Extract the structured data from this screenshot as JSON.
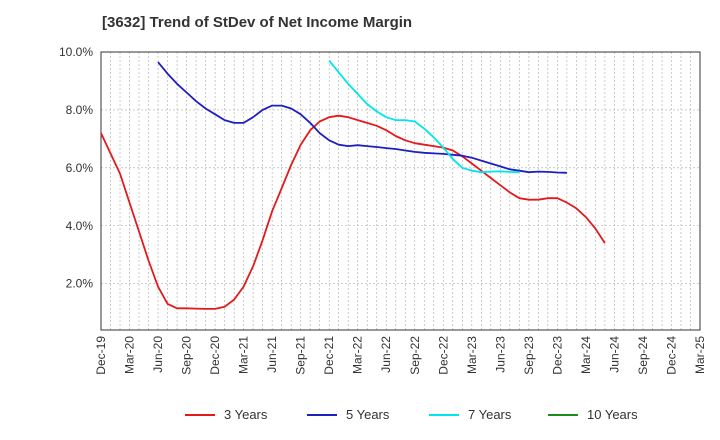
{
  "chart_data": {
    "type": "line",
    "title": "[3632]  Trend of StDev of Net Income Margin",
    "xlabel": "",
    "ylabel": "",
    "x_ticks": [
      "Dec-19",
      "Mar-20",
      "Jun-20",
      "Sep-20",
      "Dec-20",
      "Mar-21",
      "Jun-21",
      "Sep-21",
      "Dec-21",
      "Mar-22",
      "Jun-22",
      "Sep-22",
      "Dec-22",
      "Mar-23",
      "Jun-23",
      "Sep-23",
      "Dec-23",
      "Mar-24",
      "Jun-24",
      "Sep-24",
      "Dec-24",
      "Mar-25"
    ],
    "y_ticks": [
      "2.0%",
      "4.0%",
      "6.0%",
      "8.0%",
      "10.0%"
    ],
    "y_tick_values": [
      2.0,
      4.0,
      6.0,
      8.0,
      10.0
    ],
    "ylim": [
      0.4,
      10.0
    ],
    "grid": true,
    "legend_position": "bottom",
    "series": [
      {
        "name": "3 Years",
        "color": "#e31a1c",
        "points": [
          [
            "Dec-19",
            7.2
          ],
          [
            "Jan-20",
            6.5
          ],
          [
            "Feb-20",
            5.8
          ],
          [
            "Mar-20",
            4.8
          ],
          [
            "Apr-20",
            3.8
          ],
          [
            "May-20",
            2.8
          ],
          [
            "Jun-20",
            1.9
          ],
          [
            "Jul-20",
            1.3
          ],
          [
            "Aug-20",
            1.15
          ],
          [
            "Sep-20",
            1.15
          ],
          [
            "Oct-20",
            1.14
          ],
          [
            "Nov-20",
            1.13
          ],
          [
            "Dec-20",
            1.13
          ],
          [
            "Jan-21",
            1.2
          ],
          [
            "Feb-21",
            1.45
          ],
          [
            "Mar-21",
            1.9
          ],
          [
            "Apr-21",
            2.6
          ],
          [
            "May-21",
            3.5
          ],
          [
            "Jun-21",
            4.5
          ],
          [
            "Jul-21",
            5.3
          ],
          [
            "Aug-21",
            6.1
          ],
          [
            "Sep-21",
            6.8
          ],
          [
            "Oct-21",
            7.3
          ],
          [
            "Nov-21",
            7.6
          ],
          [
            "Dec-21",
            7.75
          ],
          [
            "Jan-22",
            7.8
          ],
          [
            "Feb-22",
            7.75
          ],
          [
            "Mar-22",
            7.65
          ],
          [
            "Apr-22",
            7.55
          ],
          [
            "May-22",
            7.45
          ],
          [
            "Jun-22",
            7.3
          ],
          [
            "Jul-22",
            7.1
          ],
          [
            "Aug-22",
            6.95
          ],
          [
            "Sep-22",
            6.85
          ],
          [
            "Oct-22",
            6.8
          ],
          [
            "Nov-22",
            6.75
          ],
          [
            "Dec-22",
            6.7
          ],
          [
            "Jan-23",
            6.6
          ],
          [
            "Feb-23",
            6.4
          ],
          [
            "Mar-23",
            6.15
          ],
          [
            "Apr-23",
            5.9
          ],
          [
            "May-23",
            5.65
          ],
          [
            "Jun-23",
            5.4
          ],
          [
            "Jul-23",
            5.15
          ],
          [
            "Aug-23",
            4.95
          ],
          [
            "Sep-23",
            4.9
          ],
          [
            "Oct-23",
            4.9
          ],
          [
            "Nov-23",
            4.95
          ],
          [
            "Dec-23",
            4.95
          ],
          [
            "Jan-24",
            4.8
          ],
          [
            "Feb-24",
            4.6
          ],
          [
            "Mar-24",
            4.3
          ],
          [
            "Apr-24",
            3.9
          ],
          [
            "May-24",
            3.4
          ]
        ]
      },
      {
        "name": "5 Years",
        "color": "#1f1fbf",
        "points": [
          [
            "Jun-20",
            9.65
          ],
          [
            "Jul-20",
            9.25
          ],
          [
            "Aug-20",
            8.9
          ],
          [
            "Sep-20",
            8.6
          ],
          [
            "Oct-20",
            8.3
          ],
          [
            "Nov-20",
            8.05
          ],
          [
            "Dec-20",
            7.85
          ],
          [
            "Jan-21",
            7.65
          ],
          [
            "Feb-21",
            7.55
          ],
          [
            "Mar-21",
            7.55
          ],
          [
            "Apr-21",
            7.75
          ],
          [
            "May-21",
            8.0
          ],
          [
            "Jun-21",
            8.15
          ],
          [
            "Jul-21",
            8.15
          ],
          [
            "Aug-21",
            8.05
          ],
          [
            "Sep-21",
            7.85
          ],
          [
            "Oct-21",
            7.55
          ],
          [
            "Nov-21",
            7.2
          ],
          [
            "Dec-21",
            6.95
          ],
          [
            "Jan-22",
            6.8
          ],
          [
            "Feb-22",
            6.75
          ],
          [
            "Mar-22",
            6.78
          ],
          [
            "Apr-22",
            6.75
          ],
          [
            "May-22",
            6.72
          ],
          [
            "Jun-22",
            6.68
          ],
          [
            "Jul-22",
            6.65
          ],
          [
            "Aug-22",
            6.6
          ],
          [
            "Sep-22",
            6.55
          ],
          [
            "Oct-22",
            6.52
          ],
          [
            "Nov-22",
            6.5
          ],
          [
            "Dec-22",
            6.48
          ],
          [
            "Jan-23",
            6.45
          ],
          [
            "Feb-23",
            6.42
          ],
          [
            "Mar-23",
            6.35
          ],
          [
            "Apr-23",
            6.25
          ],
          [
            "May-23",
            6.15
          ],
          [
            "Jun-23",
            6.05
          ],
          [
            "Jul-23",
            5.95
          ],
          [
            "Aug-23",
            5.9
          ],
          [
            "Sep-23",
            5.85
          ],
          [
            "Oct-23",
            5.87
          ],
          [
            "Nov-23",
            5.86
          ],
          [
            "Dec-23",
            5.84
          ],
          [
            "Jan-24",
            5.83
          ]
        ]
      },
      {
        "name": "7 Years",
        "color": "#00e5ee",
        "points": [
          [
            "Dec-21",
            9.7
          ],
          [
            "Jan-22",
            9.3
          ],
          [
            "Feb-22",
            8.9
          ],
          [
            "Mar-22",
            8.55
          ],
          [
            "Apr-22",
            8.2
          ],
          [
            "May-22",
            7.95
          ],
          [
            "Jun-22",
            7.75
          ],
          [
            "Jul-22",
            7.65
          ],
          [
            "Aug-22",
            7.65
          ],
          [
            "Sep-22",
            7.6
          ],
          [
            "Oct-22",
            7.35
          ],
          [
            "Nov-22",
            7.05
          ],
          [
            "Dec-22",
            6.7
          ],
          [
            "Jan-23",
            6.3
          ],
          [
            "Feb-23",
            6.0
          ],
          [
            "Mar-23",
            5.9
          ],
          [
            "Apr-23",
            5.85
          ],
          [
            "May-23",
            5.87
          ],
          [
            "Jun-23",
            5.88
          ],
          [
            "Jul-23",
            5.86
          ],
          [
            "Aug-23",
            5.85
          ]
        ]
      },
      {
        "name": "10 Years",
        "color": "#1a8c1a",
        "points": []
      }
    ]
  }
}
